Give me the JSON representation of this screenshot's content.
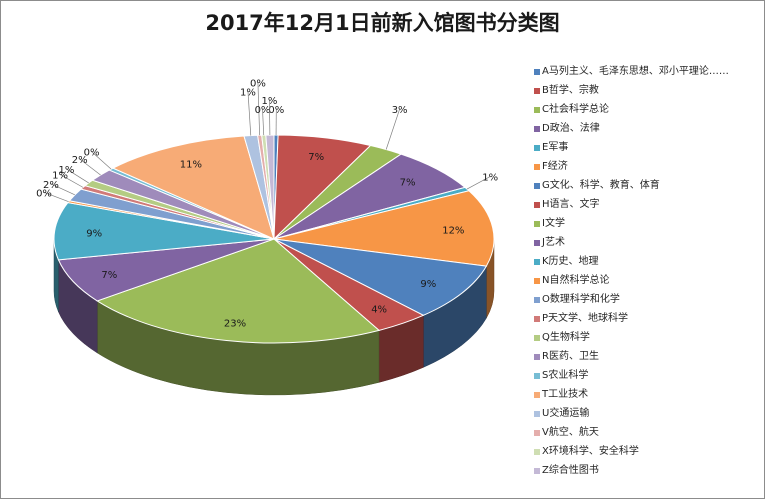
{
  "chart_data": {
    "type": "pie",
    "title": "2017年12月1日前新入馆图书分类图",
    "legend_position": "right",
    "slices": [
      {
        "label": "A马列主义、毛泽东思想、邓小平理论……",
        "value": 0.3,
        "display": "0%",
        "color": "#4f81bd"
      },
      {
        "label": "B哲学、宗教",
        "value": 7,
        "display": "7%",
        "color": "#c0504d"
      },
      {
        "label": "C社会科学总论",
        "value": 2.6,
        "display": "3%",
        "color": "#9bbb59"
      },
      {
        "label": "D政治、法律",
        "value": 7,
        "display": "7%",
        "color": "#8064a2"
      },
      {
        "label": "E军事",
        "value": 0.6,
        "display": "1%",
        "color": "#4bacc6"
      },
      {
        "label": "F经济",
        "value": 12,
        "display": "12%",
        "color": "#f79646"
      },
      {
        "label": "G文化、科学、教育、体育",
        "value": 9,
        "display": "9%",
        "color": "#4f81bd"
      },
      {
        "label": "H语言、文字",
        "value": 4,
        "display": "4%",
        "color": "#c0504d"
      },
      {
        "label": "I文学",
        "value": 23,
        "display": "23%",
        "color": "#9bbb59"
      },
      {
        "label": "J艺术",
        "value": 7,
        "display": "7%",
        "color": "#8064a2"
      },
      {
        "label": "K历史、地理",
        "value": 9,
        "display": "9%",
        "color": "#4bacc6"
      },
      {
        "label": "N自然科学总论",
        "value": 0.3,
        "display": "0%",
        "color": "#f79646"
      },
      {
        "label": "O数理科学和化学",
        "value": 2,
        "display": "2%",
        "color": "#7f9fcf"
      },
      {
        "label": "P天文学、地球科学",
        "value": 0.6,
        "display": "1%",
        "color": "#d17a78"
      },
      {
        "label": "Q生物科学",
        "value": 1,
        "display": "1%",
        "color": "#b4cc83"
      },
      {
        "label": "R医药、卫生",
        "value": 2,
        "display": "2%",
        "color": "#9f8bbb"
      },
      {
        "label": "S农业科学",
        "value": 0.4,
        "display": "0%",
        "color": "#77bdd4"
      },
      {
        "label": "T工业技术",
        "value": 11,
        "display": "11%",
        "color": "#f7ab76"
      },
      {
        "label": "U交通运输",
        "value": 1,
        "display": "1%",
        "color": "#aec2e0"
      },
      {
        "label": "V航空、航天",
        "value": 0.3,
        "display": "0%",
        "color": "#e4aeac"
      },
      {
        "label": "X环境科学、安全科学",
        "value": 0.3,
        "display": "0%",
        "color": "#cfdeb3"
      },
      {
        "label": "Z综合性图书",
        "value": 0.6,
        "display": "1%",
        "color": "#c4b9d6"
      }
    ]
  }
}
